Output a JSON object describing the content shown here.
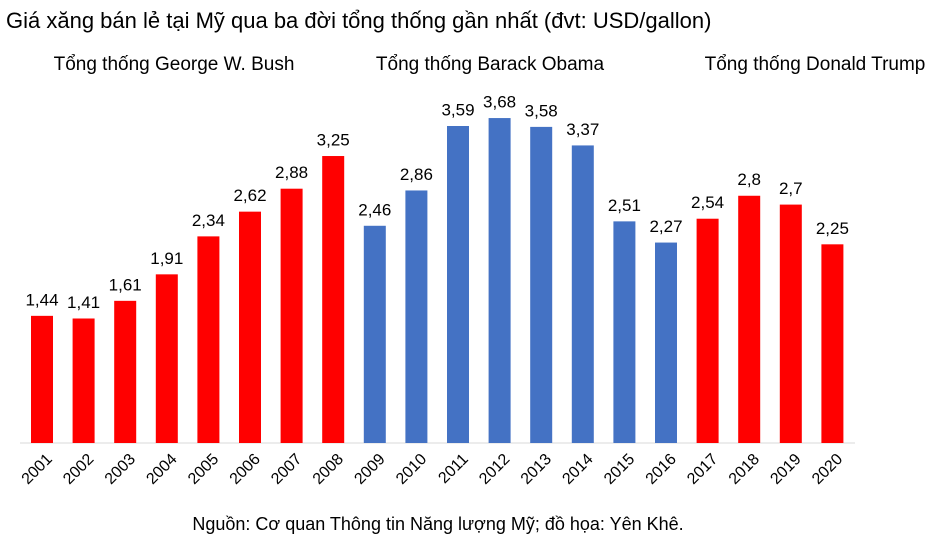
{
  "chart_data": {
    "type": "bar",
    "title": "Giá xăng bán lẻ tại Mỹ qua ba đời tổng thống gần nhất (đvt: USD/gallon)",
    "annotations": [
      "Tổng thống George W. Bush",
      "Tổng thống Barack Obama",
      "Tổng thống Donald Trump"
    ],
    "source": "Nguồn: Cơ quan Thông tin Năng lượng Mỹ; đồ họa: Yên Khê.",
    "categories": [
      "2001",
      "2002",
      "2003",
      "2004",
      "2005",
      "2006",
      "2007",
      "2008",
      "2009",
      "2010",
      "2011",
      "2012",
      "2013",
      "2014",
      "2015",
      "2016",
      "2017",
      "2018",
      "2019",
      "2020"
    ],
    "values": [
      1.44,
      1.41,
      1.61,
      1.91,
      2.34,
      2.62,
      2.88,
      3.25,
      2.46,
      2.86,
      3.59,
      3.68,
      3.58,
      3.37,
      2.51,
      2.27,
      2.54,
      2.8,
      2.7,
      2.25
    ],
    "value_labels": [
      "1,44",
      "1,41",
      "1,61",
      "1,91",
      "2,34",
      "2,62",
      "2,88",
      "3,25",
      "2,46",
      "2,86",
      "3,59",
      "3,68",
      "3,58",
      "3,37",
      "2,51",
      "2,27",
      "2,54",
      "2,8",
      "2,7",
      "2,25"
    ],
    "colors": [
      "#ff0000",
      "#ff0000",
      "#ff0000",
      "#ff0000",
      "#ff0000",
      "#ff0000",
      "#ff0000",
      "#ff0000",
      "#4472c4",
      "#4472c4",
      "#4472c4",
      "#4472c4",
      "#4472c4",
      "#4472c4",
      "#4472c4",
      "#4472c4",
      "#ff0000",
      "#ff0000",
      "#ff0000",
      "#ff0000"
    ]
  }
}
